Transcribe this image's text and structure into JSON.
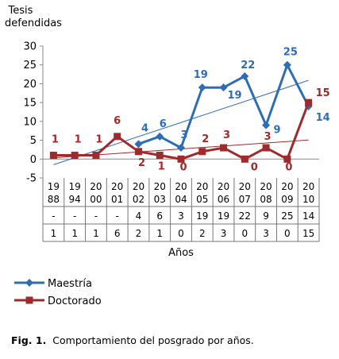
{
  "chart_data": {
    "type": "line",
    "ylabel": "Tesis defendidas",
    "xlabel": "Años",
    "ylim": [
      -5,
      30
    ],
    "yticks": [
      -5,
      0,
      5,
      10,
      15,
      20,
      25,
      30
    ],
    "categories": [
      [
        "19",
        "88"
      ],
      [
        "19",
        "94"
      ],
      [
        "20",
        "00"
      ],
      [
        "20",
        "01"
      ],
      [
        "20",
        "02"
      ],
      [
        "20",
        "03"
      ],
      [
        "20",
        "04"
      ],
      [
        "20",
        "05"
      ],
      [
        "20",
        "06"
      ],
      [
        "20",
        "07"
      ],
      [
        "20",
        "08"
      ],
      [
        "20",
        "09"
      ],
      [
        "20",
        "10"
      ]
    ],
    "series": [
      {
        "name": "Maestría",
        "color": "#2E6DB4",
        "marker": "diamond",
        "values": [
          null,
          null,
          null,
          null,
          4,
          6,
          3,
          19,
          19,
          22,
          9,
          25,
          14
        ],
        "table_values": [
          "-",
          "-",
          "-",
          "-",
          "4",
          "6",
          "3",
          "19",
          "19",
          "22",
          "9",
          "25",
          "14"
        ],
        "trendline": true
      },
      {
        "name": "Doctorado",
        "color": "#9E2A2B",
        "marker": "square",
        "values": [
          1,
          1,
          1,
          6,
          2,
          1,
          0,
          2,
          3,
          0,
          3,
          0,
          15
        ],
        "table_values": [
          "1",
          "1",
          "1",
          "6",
          "2",
          "1",
          "0",
          "2",
          "3",
          "0",
          "3",
          "0",
          "15"
        ],
        "trendline": true
      }
    ],
    "grid": false,
    "legend": "bottom-left"
  },
  "caption": {
    "label": "Fig. 1.",
    "text": "Comportamiento del posgrado por años."
  }
}
